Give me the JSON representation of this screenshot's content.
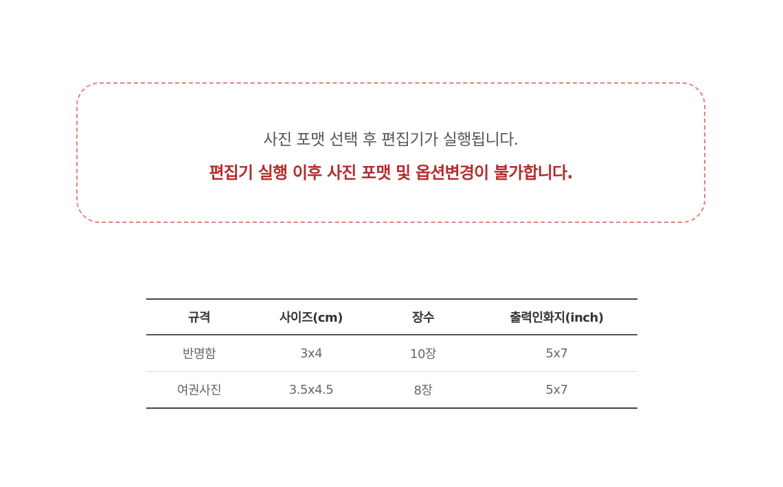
{
  "notice": {
    "line1": "사진 포맷 선택 후 편집기가 실행됩니다.",
    "line2": "편집기 실행 이후 사진 포맷 및 옵션변경이 불가합니다.",
    "border_color": "#e8807a",
    "warning_color": "#b52a2a"
  },
  "table": {
    "headers": [
      "규격",
      "사이즈(cm)",
      "장수",
      "출력인화지(inch)"
    ],
    "rows": [
      [
        "반명함",
        "3x4",
        "10장",
        "5x7"
      ],
      [
        "여권사진",
        "3.5x4.5",
        "8장",
        "5x7"
      ]
    ]
  }
}
